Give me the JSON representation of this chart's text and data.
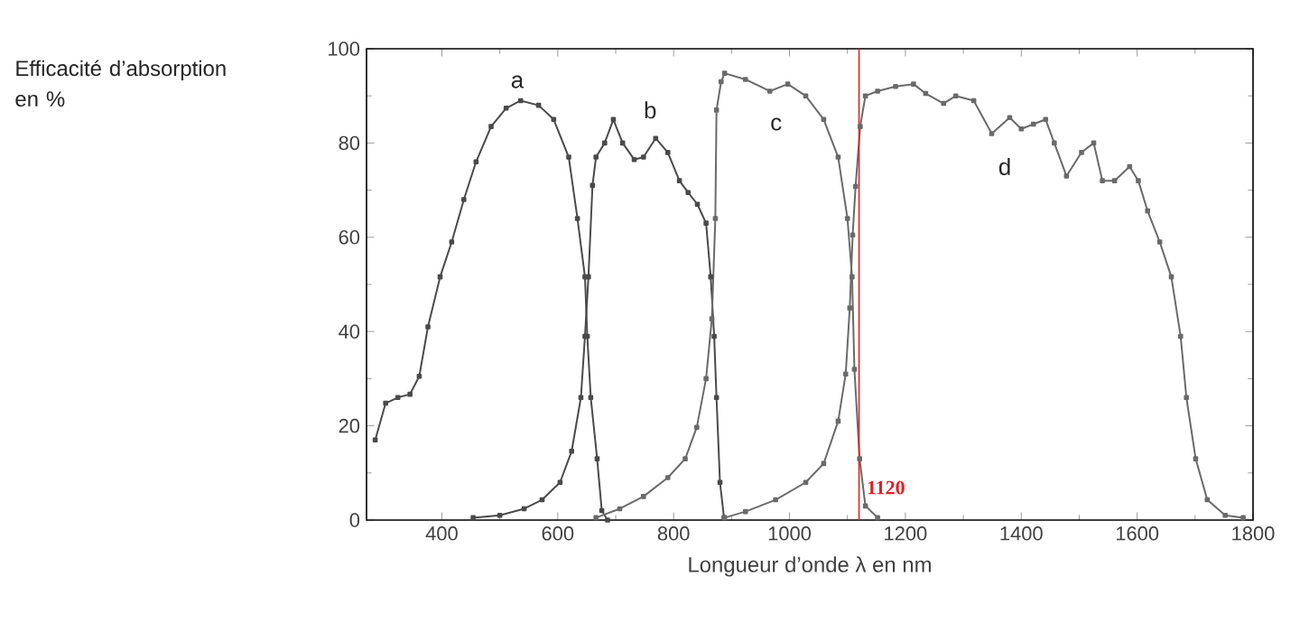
{
  "chart_data": {
    "type": "line",
    "xlabel": "Longueur d’onde λ en nm",
    "ylabel": "Efficacité d’absorption en %",
    "xlim": [
      270,
      1800
    ],
    "ylim": [
      0,
      100
    ],
    "xticks": [
      400,
      600,
      800,
      1000,
      1200,
      1400,
      1600,
      1800
    ],
    "yticks": [
      0,
      20,
      40,
      60,
      80,
      100
    ],
    "marker": "square",
    "line_style": "solid",
    "grid": false,
    "series": [
      {
        "color": "#4a4a4a",
        "x": [
          285,
          303,
          324,
          345,
          361,
          376,
          397,
          417,
          438,
          459,
          485,
          511,
          536,
          567,
          593,
          619,
          634,
          647,
          651,
          657,
          668,
          676,
          686
        ],
        "values": [
          17,
          24.8,
          26,
          26.7,
          30.5,
          41,
          51.6,
          59,
          68,
          76,
          83.5,
          87.4,
          89,
          88,
          85,
          77,
          64,
          51.6,
          39,
          26,
          13,
          2,
          0
        ]
      },
      {
        "color": "#4a4a4a",
        "x": [
          454,
          500,
          542,
          573,
          604,
          624,
          640,
          647,
          653,
          660,
          666,
          681,
          696,
          712,
          732,
          748,
          769,
          790,
          810,
          825,
          841,
          856,
          864,
          870,
          874,
          880,
          887
        ],
        "values": [
          0.5,
          1,
          2.4,
          4.3,
          8,
          14.6,
          26,
          39,
          51.6,
          71,
          77,
          80,
          85,
          80,
          76.5,
          77,
          81,
          78,
          72,
          69.5,
          67,
          63,
          51.6,
          39,
          26,
          8,
          0.5
        ]
      },
      {
        "color": "#6a6a6a",
        "x": [
          666,
          707,
          748,
          790,
          820,
          840,
          856,
          866,
          872,
          874,
          882,
          888,
          924,
          966,
          997,
          1028,
          1059,
          1084,
          1100,
          1108,
          1112,
          1121,
          1131,
          1152
        ],
        "values": [
          0.5,
          2.4,
          5,
          9,
          13,
          19.7,
          30,
          42.7,
          64,
          87,
          93,
          94.8,
          93.5,
          91,
          92.5,
          90,
          85,
          77,
          64,
          51.6,
          32,
          13,
          3,
          0.5
        ]
      },
      {
        "color": "#6a6a6a",
        "x": [
          888,
          924,
          976,
          1028,
          1059,
          1084,
          1097,
          1104,
          1109,
          1114,
          1122,
          1131,
          1152,
          1183,
          1214,
          1235,
          1266,
          1287,
          1318,
          1349,
          1380,
          1400,
          1421,
          1442,
          1457,
          1478,
          1504,
          1525,
          1540,
          1561,
          1587,
          1602,
          1618,
          1639,
          1659,
          1675,
          1685,
          1701,
          1721,
          1752,
          1783
        ],
        "values": [
          0.5,
          1.8,
          4.3,
          8,
          12,
          21,
          31,
          45,
          60.5,
          70.8,
          83.5,
          90,
          91,
          92,
          92.5,
          90.5,
          88.4,
          90,
          89,
          82,
          85.4,
          83,
          84,
          85,
          80,
          73,
          78,
          80,
          72,
          72,
          75,
          72,
          65.6,
          59,
          51.6,
          39,
          26,
          13,
          4.3,
          1,
          0.5
        ]
      }
    ],
    "annotations": [
      "a",
      "b",
      "c",
      "d"
    ],
    "ref_lines": [
      {
        "axis": "x",
        "value": 1120,
        "label": "1120",
        "color": "#e31e24"
      }
    ]
  }
}
